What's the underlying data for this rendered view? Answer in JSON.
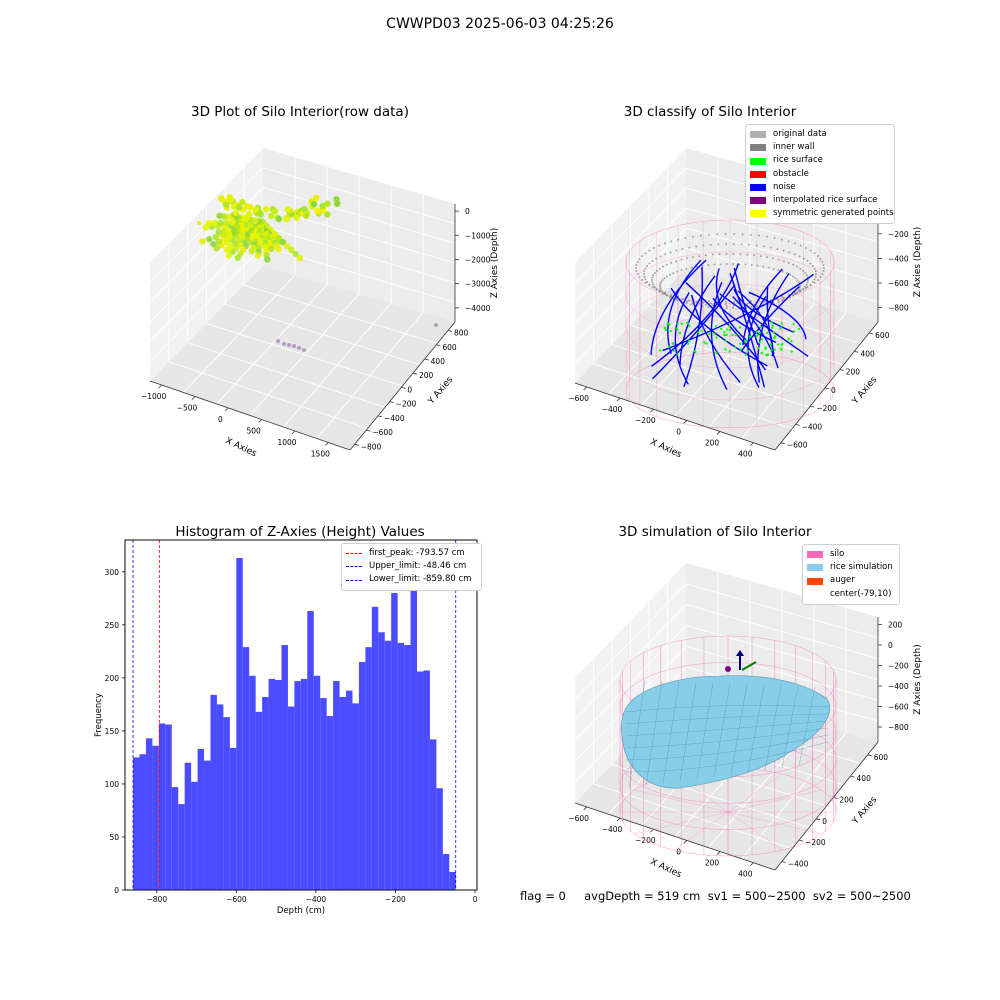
{
  "suptitle": "CWWPD03 2025-06-03 04:25:26",
  "colors": {
    "silo": "#ff69b4",
    "rice_simulation": "#87ceeb",
    "auger": "#ff4500",
    "hist_bar": "#4b4bff",
    "first_peak": "#ff0000",
    "limits": "#0000ff",
    "noise": "#0000ff",
    "rice_surface": "#00ff00",
    "inner_wall": "#808080",
    "original": "#b0b0b0",
    "symmetric": "#ffff00",
    "interpolated": "#800080",
    "obstacle": "#ff0000"
  },
  "chart_data": [
    {
      "type": "scatter",
      "projection": "3d",
      "title": "3D Plot of Silo Interior(row data)",
      "xlabel": "X Axies",
      "ylabel": "Y Axies",
      "zlabel": "Z Axies (Depth)",
      "x_ticks": [
        "−1000",
        "−500",
        "0",
        "500",
        "1000",
        "1500"
      ],
      "y_ticks": [
        "−800",
        "−600",
        "−400",
        "−200",
        "0",
        "200",
        "400",
        "600",
        "800"
      ],
      "z_ticks": [
        "0",
        "−1000",
        "−2000",
        "−3000",
        "−4000"
      ],
      "xlim": [
        -1000,
        1500
      ],
      "ylim": [
        -800,
        800
      ],
      "zlim": [
        -4000,
        0
      ],
      "colormap": "yellow-green",
      "grid": true
    },
    {
      "type": "scatter",
      "projection": "3d",
      "title": "3D classify of Silo Interior",
      "xlabel": "X Axies",
      "ylabel": "Y Axies",
      "zlabel": "Z Axies (Depth)",
      "x_ticks": [
        "−600",
        "−400",
        "−200",
        "0",
        "200",
        "400"
      ],
      "y_ticks": [
        "−600",
        "−400",
        "−200",
        "0",
        "200",
        "400",
        "600"
      ],
      "z_ticks": [
        "0",
        "−200",
        "−400",
        "−600",
        "−800"
      ],
      "xlim": [
        -650,
        450
      ],
      "ylim": [
        -600,
        600
      ],
      "zlim": [
        -900,
        100
      ],
      "legend_position": "upper right",
      "legend": [
        {
          "label": "original data",
          "color": "#b0b0b0"
        },
        {
          "label": "inner wall",
          "color": "#808080"
        },
        {
          "label": "rice surface",
          "color": "#00ff00"
        },
        {
          "label": "obstacle",
          "color": "#ff0000"
        },
        {
          "label": "noise",
          "color": "#0000ff"
        },
        {
          "label": "interpolated rice surface",
          "color": "#800080"
        },
        {
          "label": "symmetric generated points",
          "color": "#ffff00"
        }
      ],
      "grid": true
    },
    {
      "type": "bar",
      "title": "Histogram of Z-Axies (Height) Values",
      "xlabel": "Depth (cm)",
      "ylabel": "Frequency",
      "xlim": [
        -880,
        5
      ],
      "ylim": [
        0,
        330
      ],
      "x_ticks": [
        -800,
        -600,
        -400,
        -200,
        0
      ],
      "y_ticks": [
        0,
        50,
        100,
        150,
        200,
        250,
        300
      ],
      "bin_start": -859.8,
      "bin_width": 16.227,
      "values": [
        125,
        128,
        143,
        136,
        157,
        156,
        97,
        81,
        120,
        102,
        133,
        122,
        184,
        175,
        163,
        134,
        313,
        229,
        202,
        168,
        182,
        199,
        198,
        231,
        173,
        197,
        199,
        263,
        202,
        181,
        164,
        197,
        182,
        188,
        176,
        215,
        229,
        267,
        243,
        235,
        280,
        233,
        231,
        285,
        206,
        207,
        142,
        96,
        34,
        17
      ],
      "lines": [
        {
          "label": "first_peak: -793.57 cm",
          "x": -793.57,
          "color": "#ff0000"
        },
        {
          "label": "Upper_limit: -48.46 cm",
          "x": -48.46,
          "color": "#0000ff"
        },
        {
          "label": "Lower_limit: -859.80 cm",
          "x": -859.8,
          "color": "#0000ff"
        }
      ],
      "legend_position": "upper right",
      "grid": false
    },
    {
      "type": "surface",
      "projection": "3d",
      "title": "3D simulation of Silo Interior",
      "xlabel": "X Axies",
      "ylabel": "Y Axies",
      "zlabel": "Z Axies (Depth)",
      "x_ticks": [
        "−600",
        "−400",
        "−200",
        "0",
        "200",
        "400"
      ],
      "y_ticks": [
        "−400",
        "−200",
        "0",
        "200",
        "400",
        "600"
      ],
      "z_ticks": [
        "200",
        "0",
        "−200",
        "−400",
        "−600",
        "−800"
      ],
      "xlim": [
        -650,
        450
      ],
      "ylim": [
        -550,
        650
      ],
      "zlim": [
        -900,
        300
      ],
      "legend_position": "upper right",
      "legend": [
        {
          "label": "silo",
          "color": "#ff69b4"
        },
        {
          "label": "rice simulation",
          "color": "#87ceeb"
        },
        {
          "label": "auger",
          "color": "#ff4500"
        },
        {
          "label": "center(-79,10)",
          "color": ""
        }
      ],
      "grid": true
    }
  ],
  "status_line": "flag = 0     avgDepth = 519 cm  sv1 = 500~2500  sv2 = 500~2500"
}
